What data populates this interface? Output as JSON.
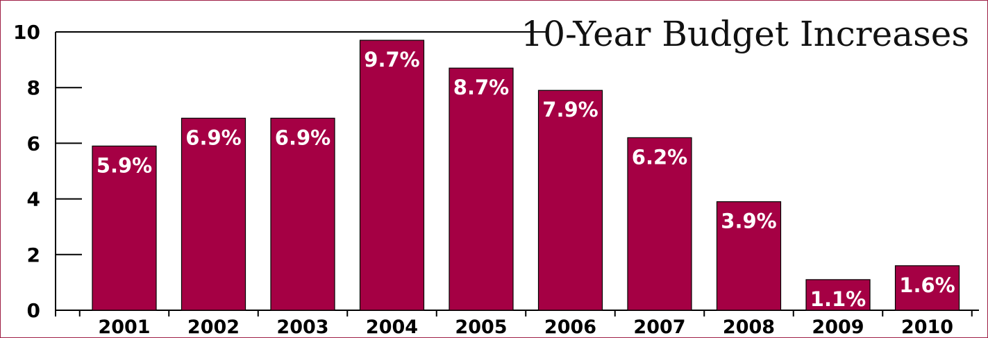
{
  "chart_data": {
    "type": "bar",
    "title": "10-Year Budget Increases",
    "xlabel": "",
    "ylabel": "",
    "categories": [
      "2001",
      "2002",
      "2003",
      "2004",
      "2005",
      "2006",
      "2007",
      "2008",
      "2009",
      "2010"
    ],
    "values": [
      5.9,
      6.9,
      6.9,
      9.7,
      8.7,
      7.9,
      6.2,
      3.9,
      1.1,
      1.6
    ],
    "data_labels": [
      "5.9%",
      "6.9%",
      "6.9%",
      "9.7%",
      "8.7%",
      "7.9%",
      "6.2%",
      "3.9%",
      "1.1%",
      "1.6%"
    ],
    "yticks": [
      "0",
      "2",
      "4",
      "6",
      "8",
      "10"
    ],
    "ylim": [
      0,
      10
    ],
    "grid": false,
    "legend": "none",
    "colors": {
      "bar": "#a50044",
      "frame": "#9e1e45",
      "label": "#ffffff"
    }
  }
}
